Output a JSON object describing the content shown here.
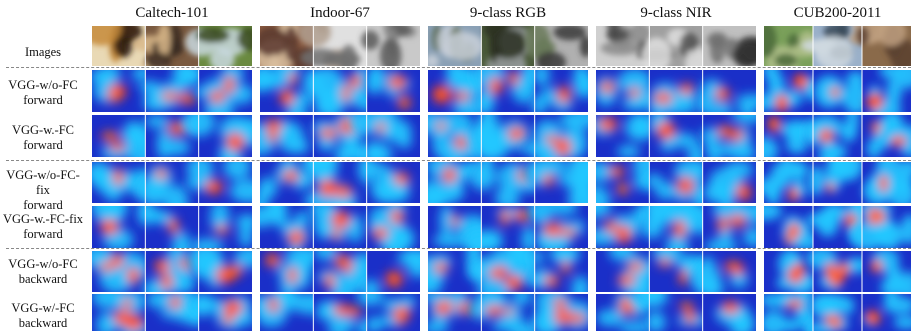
{
  "columns": [
    {
      "title": "Caltech-101"
    },
    {
      "title": "Indoor-67"
    },
    {
      "title": "9-class RGB"
    },
    {
      "title": "9-class NIR"
    },
    {
      "title": "CUB200-2011"
    }
  ],
  "rows": [
    {
      "label_line1": "Images",
      "label_line2": ""
    },
    {
      "label_line1": "VGG-w/o-FC",
      "label_line2": "forward"
    },
    {
      "label_line1": "VGG-w.-FC",
      "label_line2": "forward"
    },
    {
      "label_line1": "VGG-w/o-FC-fix",
      "label_line2": "forward"
    },
    {
      "label_line1": "VGG-w.-FC-fix",
      "label_line2": "forward"
    },
    {
      "label_line1": "VGG-w/o-FC",
      "label_line2": "backward"
    },
    {
      "label_line1": "VGG-w/-FC",
      "label_line2": "backward"
    }
  ],
  "colors": {
    "heat_low": "#1a2fc8",
    "heat_mid": "#22c8ff",
    "heat_high": "#ff2a1a",
    "heat_peak": "#ffe03a",
    "separator": "#888888"
  }
}
